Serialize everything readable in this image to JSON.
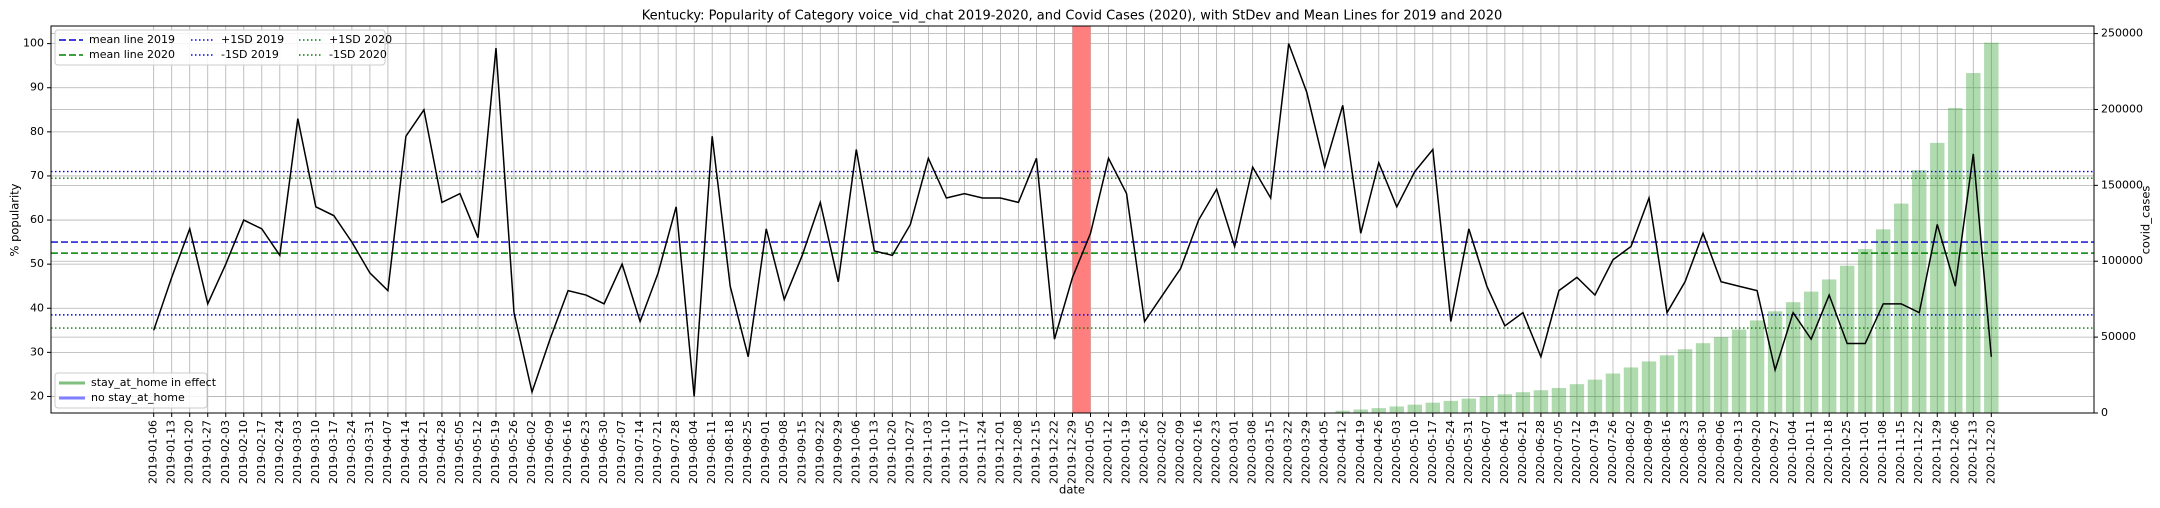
{
  "chart_data": {
    "type": "line",
    "title": "Kentucky: Popularity of Category voice_vid_chat 2019-2020, and Covid Cases (2020), with StDev and Mean Lines for 2019 and 2020",
    "xlabel": "date",
    "ylabel": "% popularity",
    "y2label": "covid_cases",
    "categories": [
      "2019-01-06",
      "2019-01-13",
      "2019-01-20",
      "2019-01-27",
      "2019-02-03",
      "2019-02-10",
      "2019-02-17",
      "2019-02-24",
      "2019-03-03",
      "2019-03-10",
      "2019-03-17",
      "2019-03-24",
      "2019-03-31",
      "2019-04-07",
      "2019-04-14",
      "2019-04-21",
      "2019-04-28",
      "2019-05-05",
      "2019-05-12",
      "2019-05-19",
      "2019-05-26",
      "2019-06-02",
      "2019-06-09",
      "2019-06-16",
      "2019-06-23",
      "2019-06-30",
      "2019-07-07",
      "2019-07-14",
      "2019-07-21",
      "2019-07-28",
      "2019-08-04",
      "2019-08-11",
      "2019-08-18",
      "2019-08-25",
      "2019-09-01",
      "2019-09-08",
      "2019-09-15",
      "2019-09-22",
      "2019-09-29",
      "2019-10-06",
      "2019-10-13",
      "2019-10-20",
      "2019-10-27",
      "2019-11-03",
      "2019-11-10",
      "2019-11-17",
      "2019-11-24",
      "2019-12-01",
      "2019-12-08",
      "2019-12-15",
      "2019-12-22",
      "2019-12-29",
      "2020-01-05",
      "2020-01-12",
      "2020-01-19",
      "2020-01-26",
      "2020-02-02",
      "2020-02-09",
      "2020-02-16",
      "2020-02-23",
      "2020-03-01",
      "2020-03-08",
      "2020-03-15",
      "2020-03-22",
      "2020-03-29",
      "2020-04-05",
      "2020-04-12",
      "2020-04-19",
      "2020-04-26",
      "2020-05-03",
      "2020-05-10",
      "2020-05-17",
      "2020-05-24",
      "2020-05-31",
      "2020-06-07",
      "2020-06-14",
      "2020-06-21",
      "2020-06-28",
      "2020-07-05",
      "2020-07-12",
      "2020-07-19",
      "2020-07-26",
      "2020-08-02",
      "2020-08-09",
      "2020-08-16",
      "2020-08-23",
      "2020-08-30",
      "2020-09-06",
      "2020-09-13",
      "2020-09-20",
      "2020-09-27",
      "2020-10-04",
      "2020-10-11",
      "2020-10-18",
      "2020-10-25",
      "2020-11-01",
      "2020-11-08",
      "2020-11-15",
      "2020-11-22",
      "2020-11-29",
      "2020-12-06",
      "2020-12-13",
      "2020-12-20"
    ],
    "series": [
      {
        "color": "#000000",
        "values": [
          35,
          47,
          58,
          41,
          50,
          60,
          58,
          52,
          83,
          63,
          61,
          55,
          48,
          44,
          79,
          85,
          64,
          66,
          56,
          99,
          39,
          21,
          33,
          44,
          43,
          41,
          50,
          37,
          48,
          63,
          20,
          79,
          45,
          29,
          58,
          42,
          52,
          64,
          46,
          76,
          53,
          52,
          59,
          74,
          65,
          66,
          65,
          65,
          64,
          74,
          33,
          47,
          57,
          74,
          66,
          37,
          43,
          49,
          60,
          67,
          54,
          72,
          65,
          100,
          89,
          72,
          86,
          57,
          73,
          63,
          71,
          76,
          37,
          58,
          45,
          36,
          39,
          29,
          44,
          47,
          43,
          51,
          54,
          65,
          39,
          46,
          57,
          46,
          45,
          44,
          26,
          39,
          33,
          43,
          32,
          32,
          41,
          41,
          39,
          59,
          45,
          75,
          29
        ]
      },
      {
        "type": "bar",
        "axis": "y2",
        "color": "#2ca02c",
        "values": [
          null,
          null,
          null,
          null,
          null,
          null,
          null,
          null,
          null,
          null,
          null,
          null,
          null,
          null,
          null,
          null,
          null,
          null,
          null,
          null,
          null,
          null,
          null,
          null,
          null,
          null,
          null,
          null,
          null,
          null,
          null,
          null,
          null,
          null,
          null,
          null,
          null,
          null,
          null,
          null,
          null,
          null,
          null,
          null,
          null,
          null,
          null,
          null,
          null,
          null,
          null,
          null,
          null,
          null,
          null,
          null,
          null,
          null,
          null,
          null,
          null,
          null,
          null,
          null,
          null,
          null,
          1500,
          2300,
          3200,
          4300,
          5500,
          6800,
          8000,
          9500,
          11000,
          12300,
          13700,
          15000,
          16500,
          19000,
          22000,
          26000,
          30000,
          34000,
          38000,
          42000,
          46000,
          50000,
          55000,
          61000,
          67000,
          73000,
          80000,
          88000,
          97000,
          108000,
          121000,
          138000,
          160000,
          178000,
          201000,
          224000,
          244000
        ]
      }
    ],
    "hlines": [
      {
        "name": "mean line 2019",
        "value": 55,
        "color": "#0000cc",
        "style": "dashed"
      },
      {
        "name": "mean line 2020",
        "value": 52.5,
        "color": "#008000",
        "style": "dashed"
      },
      {
        "name": "+1SD 2019",
        "value": 71,
        "color": "#0000ff",
        "style": "dotted"
      },
      {
        "name": "-1SD 2019",
        "value": 38.5,
        "color": "#0000ff",
        "style": "dotted"
      },
      {
        "name": "+1SD 2020",
        "value": 69.5,
        "color": "#008000",
        "style": "dotted"
      },
      {
        "name": "-1SD 2020",
        "value": 35.5,
        "color": "#008000",
        "style": "dotted"
      }
    ],
    "legend2": [
      {
        "name": "stay_at_home in effect",
        "color": "#7fbf7f"
      },
      {
        "name": "no stay_at_home",
        "color": "#7f7fff"
      }
    ],
    "highlight_color": "#ff7f7f",
    "ylim": [
      16.25,
      104
    ],
    "yticks": [
      20,
      30,
      40,
      50,
      60,
      70,
      80,
      90,
      100
    ],
    "y2lim": [
      0,
      255000
    ],
    "y2ticks": [
      0,
      50000,
      100000,
      150000,
      200000,
      250000
    ],
    "grid": true
  }
}
